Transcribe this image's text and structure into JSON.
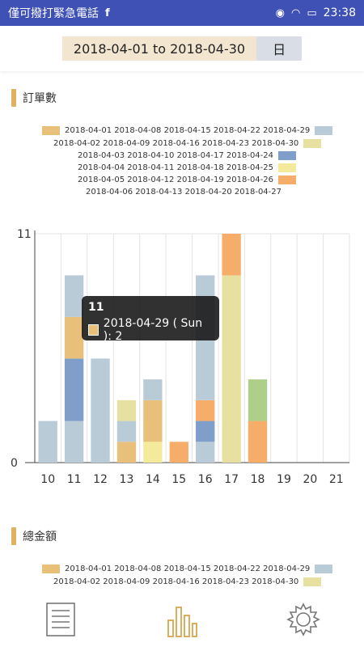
{
  "statusbar": {
    "emergency_text": "僅可撥打緊急電話",
    "time": "23:38",
    "icons": [
      "facebook-icon",
      "eye-icon",
      "wifi-icon",
      "battery-icon"
    ]
  },
  "range": {
    "text": "2018-04-01 to 2018-04-30",
    "unit": "日"
  },
  "section1": {
    "title": "訂單數"
  },
  "section2": {
    "title": "總金額"
  },
  "legend": [
    {
      "label": "2018-04-01 2018-04-08 2018-04-15 2018-04-22 2018-04-29",
      "color": "#e9c07a",
      "side": "left"
    },
    {
      "label": "",
      "color": "#b9cbd6",
      "side": "right"
    },
    {
      "label": "2018-04-02 2018-04-09 2018-04-16 2018-04-23 2018-04-30",
      "color": "#e6e1a1",
      "side": "right"
    },
    {
      "label": "2018-04-03 2018-04-10 2018-04-17 2018-04-24",
      "color": "#7f9fca",
      "side": "right"
    },
    {
      "label": "2018-04-04 2018-04-11 2018-04-18 2018-04-25",
      "color": "#f3ea9b",
      "side": "right"
    },
    {
      "label": "2018-04-05 2018-04-12 2018-04-19 2018-04-26",
      "color": "#f7ad6a",
      "side": "right"
    },
    {
      "label": "2018-04-06 2018-04-13 2018-04-20 2018-04-27",
      "color": "",
      "side": "none"
    }
  ],
  "legend2_first": "2018-04-01 2018-04-08 2018-04-15 2018-04-22 2018-04-29",
  "legend2_second": "2018-04-02 2018-04-09 2018-04-16 2018-04-23 2018-04-30",
  "tooltip": {
    "title": "11",
    "line": "2018-04-29 ( Sun ): 2"
  },
  "chart_data": {
    "type": "bar",
    "stacked": true,
    "categories": [
      "10",
      "11",
      "12",
      "13",
      "14",
      "15",
      "16",
      "17",
      "18",
      "19",
      "20",
      "21"
    ],
    "ylim": [
      0,
      11
    ],
    "yticks": [
      "0",
      "11"
    ],
    "grid": true,
    "stacks": [
      [
        {
          "v": 2,
          "c": "#b9cbd6"
        }
      ],
      [
        {
          "v": 2,
          "c": "#b9cbd6"
        },
        {
          "v": 3,
          "c": "#7f9fca"
        },
        {
          "v": 2,
          "c": "#e9c07a"
        },
        {
          "v": 2,
          "c": "#b9cbd6"
        }
      ],
      [
        {
          "v": 5,
          "c": "#b9cbd6"
        }
      ],
      [
        {
          "v": 1,
          "c": "#e9c07a"
        },
        {
          "v": 1,
          "c": "#b9cbd6"
        },
        {
          "v": 1,
          "c": "#e6e1a1"
        }
      ],
      [
        {
          "v": 1,
          "c": "#f3ea9b"
        },
        {
          "v": 2,
          "c": "#e9c07a"
        },
        {
          "v": 1,
          "c": "#b9cbd6"
        }
      ],
      [
        {
          "v": 1,
          "c": "#f7ad6a"
        }
      ],
      [
        {
          "v": 1,
          "c": "#b9cbd6"
        },
        {
          "v": 1,
          "c": "#7f9fca"
        },
        {
          "v": 1,
          "c": "#f7ad6a"
        },
        {
          "v": 6,
          "c": "#b9cbd6"
        }
      ],
      [
        {
          "v": 9,
          "c": "#e6e1a1"
        },
        {
          "v": 2,
          "c": "#f7ad6a"
        }
      ],
      [
        {
          "v": 2,
          "c": "#f7ad6a"
        },
        {
          "v": 2,
          "c": "#aecf8a"
        }
      ],
      [],
      [],
      []
    ]
  }
}
